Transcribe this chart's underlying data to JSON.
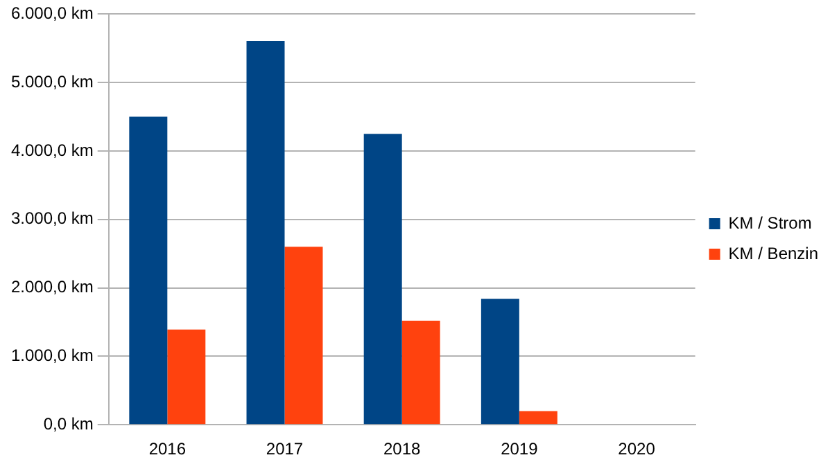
{
  "chart_data": {
    "type": "bar",
    "categories": [
      "2016",
      "2017",
      "2018",
      "2019",
      "2020"
    ],
    "series": [
      {
        "name": "KM / Strom",
        "color": "#004586",
        "values": [
          4500,
          5610,
          4250,
          1840,
          0
        ]
      },
      {
        "name": "KM / Benzin",
        "color": "#ff420e",
        "values": [
          1390,
          2600,
          1520,
          200,
          0
        ]
      }
    ],
    "ylim": [
      0,
      6000
    ],
    "yticks": [
      {
        "value": 0,
        "label": "0,0 km"
      },
      {
        "value": 1000,
        "label": "1.000,0 km"
      },
      {
        "value": 2000,
        "label": "2.000,0 km"
      },
      {
        "value": 3000,
        "label": "3.000,0 km"
      },
      {
        "value": 4000,
        "label": "4.000,0 km"
      },
      {
        "value": 5000,
        "label": "5.000,0 km"
      },
      {
        "value": 6000,
        "label": "6.000,0 km"
      }
    ],
    "grid": "y",
    "legend": "right"
  }
}
